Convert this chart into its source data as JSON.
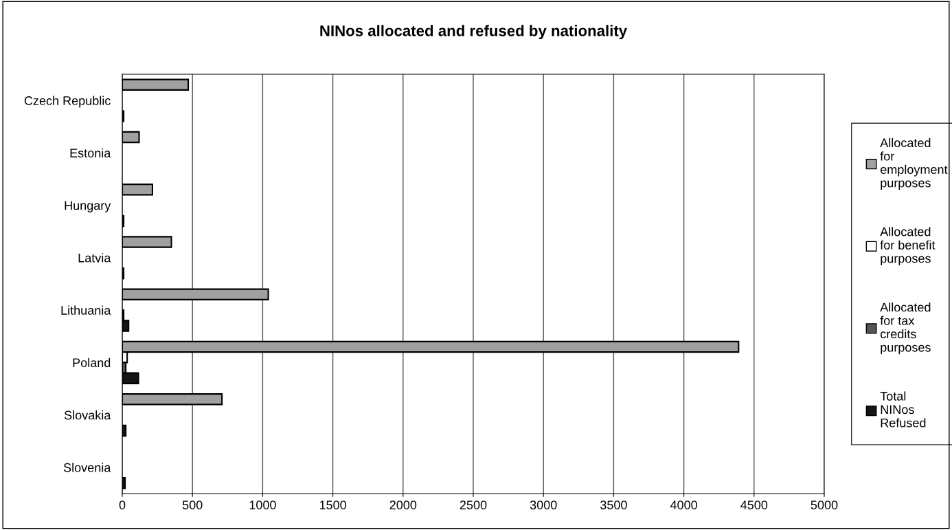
{
  "chart_data": {
    "type": "bar",
    "orientation": "horizontal",
    "title": "NINos allocated and refused by nationality",
    "categories": [
      "Czech Republic",
      "Estonia",
      "Hungary",
      "Latvia",
      "Lithuania",
      "Poland",
      "Slovakia",
      "Slovenia"
    ],
    "series": [
      {
        "name": "Allocated\nfor\nemployment\npurposes",
        "color": "#a0a0a0",
        "values": [
          470,
          120,
          215,
          350,
          1040,
          4390,
          710,
          null
        ]
      },
      {
        "name": "Allocated\nfor benefit\npurposes",
        "color": "#ffffff",
        "values": [
          null,
          null,
          null,
          null,
          null,
          35,
          null,
          null
        ]
      },
      {
        "name": "Allocated\nfor tax\ncredits\npurposes",
        "color": "#555555",
        "values": [
          null,
          null,
          null,
          null,
          10,
          25,
          null,
          null
        ]
      },
      {
        "name": "Total\nNINos\nRefused",
        "color": "#151515",
        "values": [
          10,
          null,
          10,
          10,
          45,
          115,
          25,
          20
        ]
      }
    ],
    "xlim": [
      0,
      5000
    ],
    "xticks": [
      0,
      500,
      1000,
      1500,
      2000,
      2500,
      3000,
      3500,
      4000,
      4500,
      5000
    ],
    "grid": "x",
    "legend": "right"
  }
}
